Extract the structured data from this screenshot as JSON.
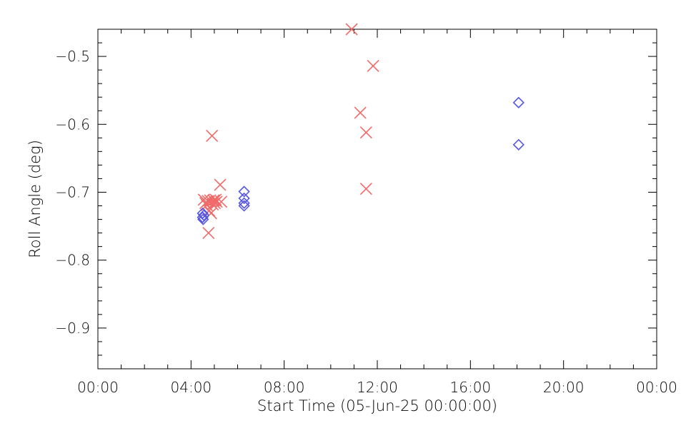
{
  "chart_data": {
    "type": "scatter",
    "title": "",
    "xlabel": "Start Time (05-Jun-25 00:00:00)",
    "ylabel": "Roll Angle (deg)",
    "x_unit": "hours since 05-Jun-25 00:00:00",
    "xlim": [
      0,
      24
    ],
    "ylim": [
      -0.96,
      -0.46
    ],
    "x_ticks": [
      0,
      4,
      8,
      12,
      16,
      20,
      24
    ],
    "x_tick_labels": [
      "00:00",
      "04:00",
      "08:00",
      "12:00",
      "16:00",
      "20:00",
      "00:00"
    ],
    "y_ticks": [
      -0.9,
      -0.8,
      -0.7,
      -0.6,
      -0.5
    ],
    "y_tick_labels": [
      "−0.9",
      "−0.8",
      "−0.7",
      "−0.6",
      "−0.5"
    ],
    "grid": false,
    "series": [
      {
        "marker": "x",
        "color": "#f06a6a",
        "points": [
          [
            4.55,
            -0.711
          ],
          [
            4.62,
            -0.716
          ],
          [
            4.68,
            -0.719
          ],
          [
            4.72,
            -0.713
          ],
          [
            4.75,
            -0.76
          ],
          [
            4.78,
            -0.727
          ],
          [
            4.82,
            -0.712
          ],
          [
            4.86,
            -0.731
          ],
          [
            4.9,
            -0.617
          ],
          [
            4.93,
            -0.718
          ],
          [
            4.97,
            -0.712
          ],
          [
            5.02,
            -0.716
          ],
          [
            5.06,
            -0.711
          ],
          [
            5.1,
            -0.714
          ],
          [
            5.25,
            -0.689
          ],
          [
            5.3,
            -0.714
          ],
          [
            10.9,
            -0.46
          ],
          [
            11.27,
            -0.583
          ],
          [
            11.52,
            -0.612
          ],
          [
            11.52,
            -0.695
          ],
          [
            11.82,
            -0.514
          ]
        ]
      },
      {
        "marker": "diamond",
        "color": "#5555e6",
        "points": [
          [
            4.5,
            -0.731
          ],
          [
            4.5,
            -0.737
          ],
          [
            4.52,
            -0.74
          ],
          [
            4.55,
            -0.734
          ],
          [
            6.28,
            -0.699
          ],
          [
            6.28,
            -0.709
          ],
          [
            6.28,
            -0.716
          ],
          [
            6.28,
            -0.72
          ],
          [
            18.07,
            -0.568
          ],
          [
            18.07,
            -0.63
          ]
        ]
      }
    ]
  }
}
